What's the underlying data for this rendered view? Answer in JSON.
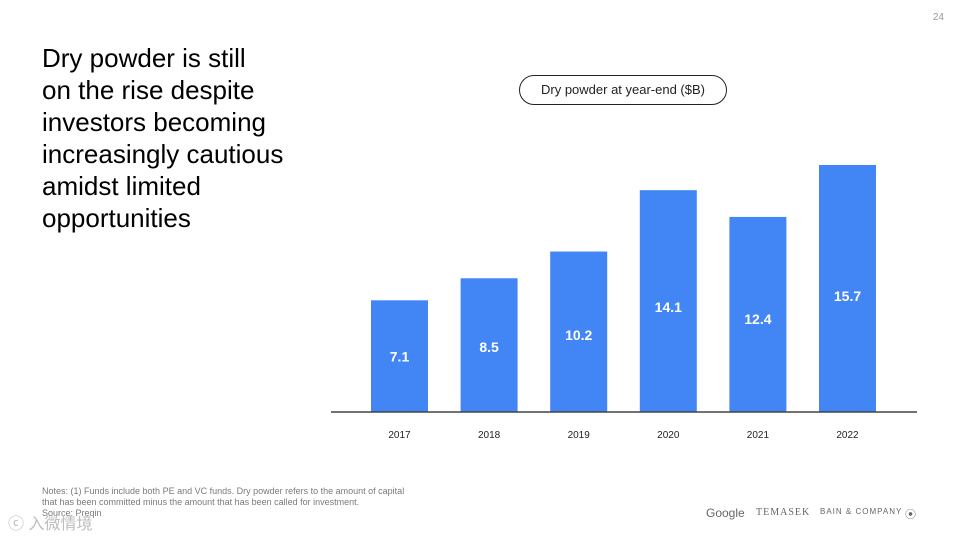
{
  "page_number": "24",
  "headline_lines": [
    "Dry powder is still",
    "on the rise despite",
    "investors becoming",
    "increasingly cautious",
    "amidst limited",
    "opportunities"
  ],
  "notes_lines": [
    "Notes: (1) Funds include both PE and VC funds. Dry powder refers to the amount of capital",
    "that has been committed minus the amount that has been called for investment.",
    "Source: Preqin"
  ],
  "logos": {
    "google": "Google",
    "temasek": "TEMASEK",
    "bain": "BAIN & COMPANY",
    "bain_icon": "⦿"
  },
  "watermark": "ⓒ 入微情境",
  "colors": {
    "bar": "#4285F4",
    "axis": "#444444",
    "label": "#ffffff"
  },
  "chart_data": {
    "type": "bar",
    "title": "Dry powder at year-end ($B)",
    "categories": [
      "2017",
      "2018",
      "2019",
      "2020",
      "2021",
      "2022"
    ],
    "values": [
      7.1,
      8.5,
      10.2,
      14.1,
      12.4,
      15.7
    ],
    "value_labels": [
      "7.1",
      "8.5",
      "10.2",
      "14.1",
      "12.4",
      "15.7"
    ],
    "xlabel": "",
    "ylabel": "",
    "ylim": [
      0,
      15.7
    ],
    "grid": false,
    "legend": "none"
  }
}
